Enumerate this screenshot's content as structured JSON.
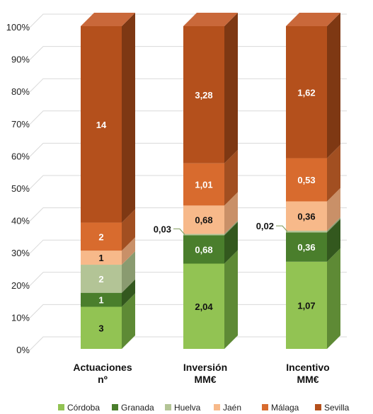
{
  "chart_data": {
    "type": "bar",
    "stacked": "percent",
    "three_d": true,
    "categories": [
      [
        "Actuaciones",
        "nº"
      ],
      [
        "Inversión",
        "MM€"
      ],
      [
        "Incentivo",
        "MM€"
      ]
    ],
    "y_ticks": [
      "0%",
      "10%",
      "20%",
      "30%",
      "40%",
      "50%",
      "60%",
      "70%",
      "80%",
      "90%",
      "100%"
    ],
    "ylim": [
      0,
      100
    ],
    "grid": true,
    "legend_position": "bottom",
    "series": [
      {
        "name": "Córdoba",
        "color": "#92C353",
        "side": "#5E8A35",
        "top": "#B2D77E",
        "label_color": "#111111",
        "values": [
          3,
          2.04,
          1.07
        ],
        "labels": [
          "3",
          "2,04",
          "1,07"
        ]
      },
      {
        "name": "Granada",
        "color": "#4A7E2C",
        "side": "#33581E",
        "top": "#6B9A4A",
        "label_color": "#ffffff",
        "values": [
          1,
          0.68,
          0.36
        ],
        "labels": [
          "1",
          "0,68",
          "0,36"
        ]
      },
      {
        "name": "Huelva",
        "color": "#B3C496",
        "side": "#8A9B70",
        "top": "#CAD6B4",
        "label_color": "#ffffff",
        "values": [
          2,
          0.03,
          0.02
        ],
        "labels": [
          "2",
          "0,03",
          "0,02"
        ],
        "outside": [
          false,
          true,
          true
        ]
      },
      {
        "name": "Jaén",
        "color": "#F7B98A",
        "side": "#C99068",
        "top": "#FAD0AE",
        "label_color": "#111111",
        "values": [
          1,
          0.68,
          0.36
        ],
        "labels": [
          "1",
          "0,68",
          "0,36"
        ]
      },
      {
        "name": "Málaga",
        "color": "#D86B2E",
        "side": "#A24F21",
        "top": "#E58E5C",
        "label_color": "#ffffff",
        "values": [
          2,
          1.01,
          0.53
        ],
        "labels": [
          "2",
          "1,01",
          "0,53"
        ]
      },
      {
        "name": "Sevilla",
        "color": "#B4501C",
        "side": "#7E3813",
        "top": "#C9683A",
        "label_color": "#ffffff",
        "values": [
          14,
          3.28,
          1.62
        ],
        "labels": [
          "14",
          "3,28",
          "1,62"
        ]
      }
    ]
  }
}
